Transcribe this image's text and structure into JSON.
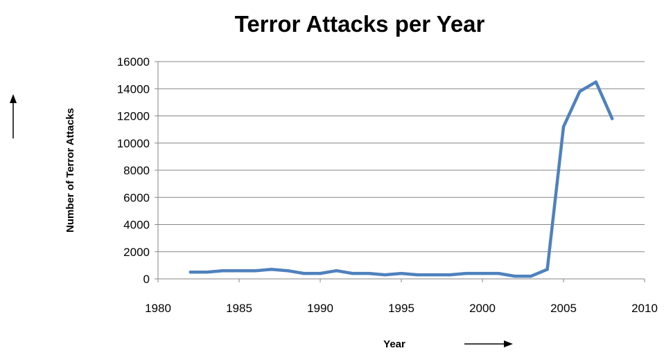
{
  "chart_data": {
    "type": "line",
    "title": "Terror Attacks per Year",
    "xlabel": "Year",
    "ylabel": "Number of Terror Attacks",
    "xlim": [
      1980,
      2010
    ],
    "ylim": [
      0,
      16000
    ],
    "x_ticks": [
      "1980",
      "1985",
      "1990",
      "1995",
      "2000",
      "2005",
      "2010"
    ],
    "y_ticks": [
      "0",
      "2000",
      "4000",
      "6000",
      "8000",
      "10000",
      "12000",
      "14000",
      "16000"
    ],
    "grid": "horizontal",
    "legend": "none",
    "series": [
      {
        "color": "#4f81bd",
        "x": [
          1982,
          1983,
          1984,
          1985,
          1986,
          1987,
          1988,
          1989,
          1990,
          1991,
          1992,
          1993,
          1994,
          1995,
          1996,
          1997,
          1998,
          1999,
          2000,
          2001,
          2002,
          2003,
          2004,
          2005,
          2006,
          2007,
          2008
        ],
        "y": [
          500,
          500,
          600,
          600,
          600,
          700,
          600,
          400,
          400,
          600,
          400,
          400,
          300,
          400,
          300,
          300,
          300,
          400,
          400,
          400,
          200,
          200,
          700,
          11200,
          13800,
          14500,
          11800
        ]
      }
    ]
  }
}
